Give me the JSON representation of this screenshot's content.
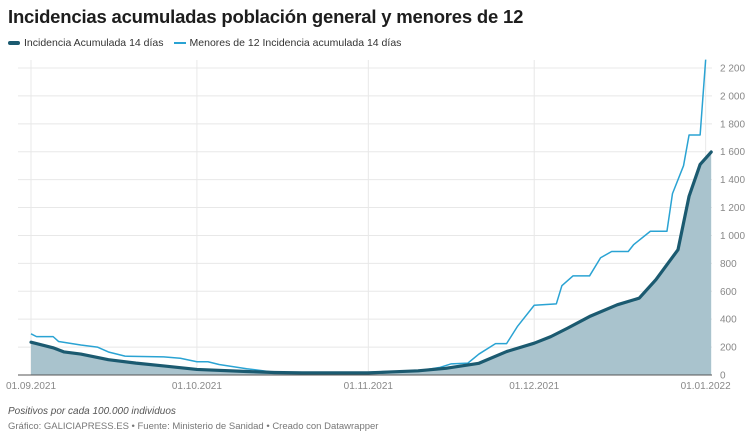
{
  "title": "Incidencias acumuladas población general y menores de 12",
  "note": "Positivos por cada 100.000 individuos",
  "credit": "Gráfico: GALICIAPRESS.ES • Fuente: Ministerio de Sanidad • Creado con Datawrapper",
  "chart_data": {
    "type": "line",
    "title": "Incidencias acumuladas población general y menores de 12",
    "ylabel": "",
    "xlabel": "",
    "ylim": [
      0,
      2260
    ],
    "yticks": [
      0,
      200,
      400,
      600,
      800,
      1000,
      1200,
      1400,
      1600,
      1800,
      2000,
      2200
    ],
    "ytick_labels": [
      "0",
      "200",
      "400",
      "600",
      "800",
      "1 000",
      "1 200",
      "1 400",
      "1 600",
      "1 800",
      "2 000",
      "2 200"
    ],
    "xticks": [
      "2021-09-01",
      "2021-10-01",
      "2021-11-01",
      "2021-12-01",
      "2022-01-01"
    ],
    "xtick_labels": [
      "01.09.2021",
      "01.10.2021",
      "01.11.2021",
      "01.12.2021",
      "01.01.2022"
    ],
    "grid": true,
    "legend": "top-left",
    "series": [
      {
        "name": "Incidencia Acumulada 14 días",
        "color": "#1b5a70",
        "fill": "#a9c3cd",
        "area": true,
        "x": [
          "2021-09-01",
          "2021-09-05",
          "2021-09-07",
          "2021-09-10",
          "2021-09-15",
          "2021-09-20",
          "2021-09-25",
          "2021-10-01",
          "2021-10-10",
          "2021-10-15",
          "2021-10-20",
          "2021-10-25",
          "2021-11-01",
          "2021-11-05",
          "2021-11-10",
          "2021-11-15",
          "2021-11-21",
          "2021-11-26",
          "2021-12-01",
          "2021-12-04",
          "2021-12-07",
          "2021-12-11",
          "2021-12-16",
          "2021-12-20",
          "2021-12-23",
          "2021-12-27",
          "2021-12-29",
          "2021-12-31",
          "2022-01-02"
        ],
        "y": [
          235,
          195,
          165,
          150,
          110,
          85,
          65,
          40,
          25,
          18,
          15,
          15,
          15,
          22,
          30,
          48,
          84,
          168,
          228,
          275,
          335,
          419,
          503,
          551,
          683,
          898,
          1281,
          1509,
          1598
        ]
      },
      {
        "name": "Menores de 12 Incidencia acumulada 14 días",
        "color": "#2aa3d3",
        "x": [
          "2021-09-01",
          "2021-09-02",
          "2021-09-05",
          "2021-09-06",
          "2021-09-10",
          "2021-09-13",
          "2021-09-15",
          "2021-09-18",
          "2021-09-25",
          "2021-09-28",
          "2021-10-01",
          "2021-10-03",
          "2021-10-05",
          "2021-10-10",
          "2021-10-15",
          "2021-10-25",
          "2021-11-01",
          "2021-11-05",
          "2021-11-10",
          "2021-11-14",
          "2021-11-16",
          "2021-11-19",
          "2021-11-21",
          "2021-11-24",
          "2021-11-26",
          "2021-11-28",
          "2021-12-01",
          "2021-12-05",
          "2021-12-06",
          "2021-12-08",
          "2021-12-11",
          "2021-12-13",
          "2021-12-15",
          "2021-12-18",
          "2021-12-19",
          "2021-12-22",
          "2021-12-25",
          "2021-12-26",
          "2021-12-28",
          "2021-12-29",
          "2021-12-31",
          "2022-01-01"
        ],
        "y": [
          295,
          275,
          275,
          240,
          215,
          200,
          165,
          135,
          130,
          120,
          95,
          95,
          75,
          45,
          20,
          18,
          20,
          25,
          30,
          55,
          80,
          85,
          150,
          225,
          225,
          350,
          500,
          510,
          640,
          710,
          710,
          840,
          885,
          885,
          935,
          1030,
          1030,
          1300,
          1500,
          1720,
          1720,
          2260
        ]
      }
    ]
  }
}
